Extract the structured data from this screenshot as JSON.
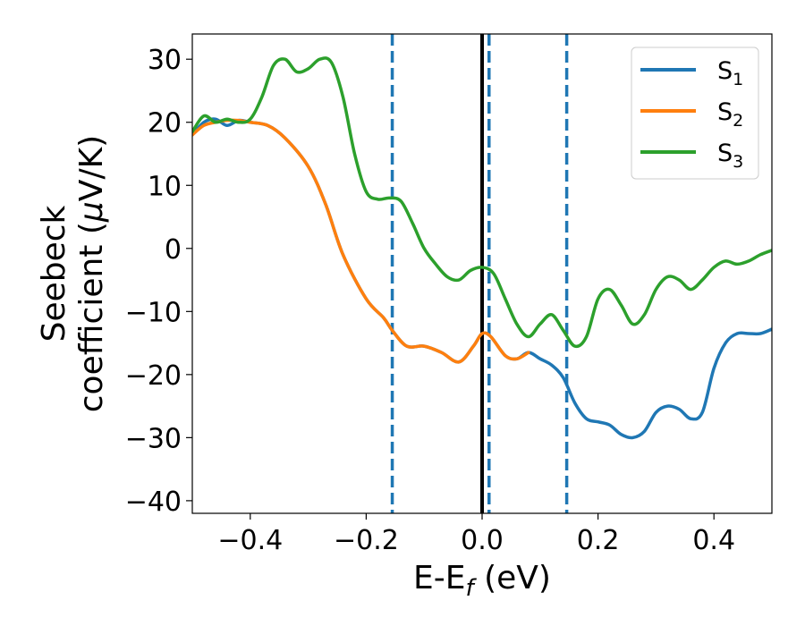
{
  "chart_data": {
    "type": "line",
    "xlabel": "E-E",
    "xlabel_sub": "f",
    "xlabel_unit": " (eV)",
    "ylabel_line1": "Seebeck",
    "ylabel_line2": "coefficient  (",
    "ylabel_mu": "μ",
    "ylabel_unit": "V/K)",
    "xlim": [
      -0.5,
      0.5
    ],
    "ylim": [
      -42,
      34
    ],
    "xticks": [
      -0.4,
      -0.2,
      0.0,
      0.2,
      0.4
    ],
    "xtick_labels": [
      "−0.4",
      "−0.2",
      "0.0",
      "0.2",
      "0.4"
    ],
    "yticks": [
      -40,
      -30,
      -20,
      -10,
      0,
      10,
      20,
      30
    ],
    "ytick_labels": [
      "−40",
      "−30",
      "−20",
      "−10",
      "0",
      "10",
      "20",
      "30"
    ],
    "legend_position": "top-right",
    "vlines": [
      {
        "x": 0.0,
        "color": "#000000",
        "style": "solid"
      },
      {
        "x": -0.155,
        "color": "#1f77b4",
        "style": "dashed"
      },
      {
        "x": 0.012,
        "color": "#1f77b4",
        "style": "dashed"
      },
      {
        "x": 0.146,
        "color": "#1f77b4",
        "style": "dashed"
      }
    ],
    "series": [
      {
        "name": "S",
        "name_sub": "1",
        "color": "#1f77b4",
        "x": [
          -0.5,
          -0.48,
          -0.46,
          -0.44,
          -0.42,
          -0.4,
          -0.37,
          -0.34,
          -0.3,
          -0.27,
          -0.24,
          -0.2,
          -0.17,
          -0.155,
          -0.13,
          -0.1,
          -0.07,
          -0.04,
          -0.015,
          0.0,
          0.015,
          0.04,
          0.06,
          0.08,
          0.1,
          0.12,
          0.14,
          0.16,
          0.18,
          0.2,
          0.22,
          0.24,
          0.26,
          0.28,
          0.3,
          0.32,
          0.34,
          0.36,
          0.38,
          0.4,
          0.42,
          0.44,
          0.46,
          0.48,
          0.5
        ],
        "y": [
          18,
          20,
          20.5,
          19.5,
          20.3,
          20,
          19.5,
          17.5,
          13,
          7,
          -1,
          -8,
          -11,
          -13,
          -15.5,
          -15.5,
          -16.5,
          -18,
          -15.5,
          -13.5,
          -14,
          -17,
          -17.5,
          -16.5,
          -17.5,
          -18.5,
          -20.5,
          -24.5,
          -27,
          -27.5,
          -28,
          -29.5,
          -30,
          -29,
          -26,
          -25,
          -25.5,
          -27,
          -26,
          -19,
          -15,
          -13.5,
          -13.5,
          -13.5,
          -12.8
        ]
      },
      {
        "name": "S",
        "name_sub": "2",
        "color": "#ff7f0e",
        "x": [
          -0.5,
          -0.48,
          -0.46,
          -0.44,
          -0.42,
          -0.4,
          -0.37,
          -0.34,
          -0.3,
          -0.27,
          -0.24,
          -0.2,
          -0.17,
          -0.155,
          -0.13,
          -0.1,
          -0.07,
          -0.04,
          -0.015,
          0.0,
          0.015,
          0.04,
          0.06,
          0.08
        ],
        "y": [
          18,
          19.5,
          20,
          20.3,
          20.3,
          20,
          19.5,
          17.5,
          13,
          7,
          -1,
          -8,
          -11,
          -13,
          -15.5,
          -15.5,
          -16.5,
          -18,
          -15.5,
          -13.5,
          -14,
          -17,
          -17.5,
          -16.5
        ]
      },
      {
        "name": "S",
        "name_sub": "3",
        "color": "#2ca02c",
        "x": [
          -0.5,
          -0.48,
          -0.46,
          -0.44,
          -0.42,
          -0.4,
          -0.38,
          -0.36,
          -0.34,
          -0.32,
          -0.3,
          -0.28,
          -0.26,
          -0.24,
          -0.22,
          -0.2,
          -0.18,
          -0.16,
          -0.14,
          -0.12,
          -0.1,
          -0.08,
          -0.06,
          -0.04,
          -0.02,
          0.0,
          0.02,
          0.04,
          0.06,
          0.08,
          0.1,
          0.12,
          0.14,
          0.16,
          0.18,
          0.2,
          0.22,
          0.24,
          0.26,
          0.28,
          0.3,
          0.32,
          0.34,
          0.36,
          0.38,
          0.4,
          0.42,
          0.44,
          0.46,
          0.48,
          0.5
        ],
        "y": [
          18.5,
          21,
          20,
          20.5,
          20,
          20.5,
          24,
          29,
          30,
          28,
          28.5,
          30,
          29.5,
          24,
          15,
          9,
          7.8,
          8,
          7.5,
          4,
          0,
          -2.5,
          -4.5,
          -5,
          -3.5,
          -3,
          -4,
          -8,
          -12,
          -14,
          -12,
          -10.5,
          -13,
          -15.5,
          -14,
          -8,
          -6.5,
          -9,
          -12,
          -10.5,
          -6.5,
          -4.5,
          -5,
          -6.5,
          -5,
          -3,
          -2,
          -2.5,
          -2,
          -1,
          -0.3
        ]
      }
    ]
  }
}
